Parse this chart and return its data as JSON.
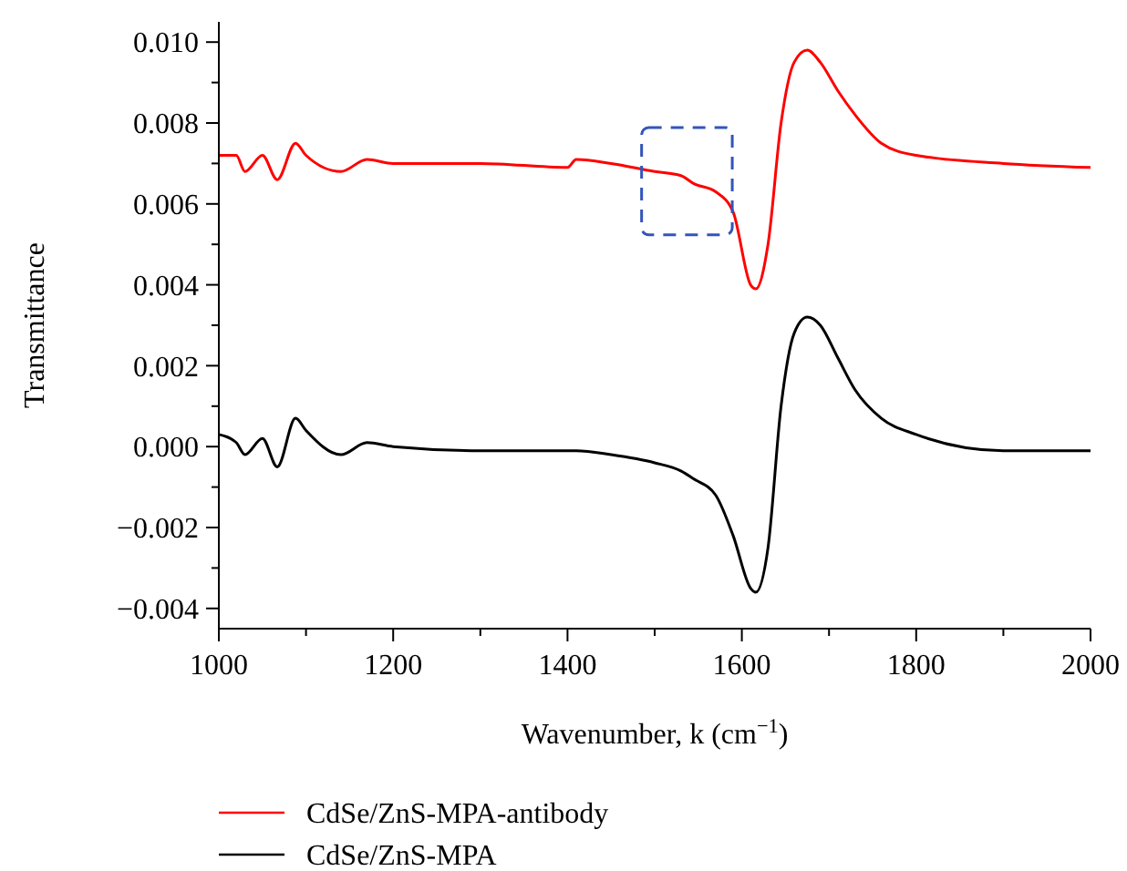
{
  "chart_data": {
    "type": "line",
    "xlabel": "Wavenumber, k (cm$^{−1}$)",
    "ylabel": "Transmittance",
    "xlim": [
      1000,
      2000
    ],
    "ylim": [
      -0.0045,
      0.0105
    ],
    "xticks": [
      1000,
      {
        "value": 1100,
        "label": null
      },
      1200,
      {
        "value": 1300,
        "label": null
      },
      1400,
      {
        "value": 1500,
        "label": null
      },
      1600,
      {
        "value": 1700,
        "label": null
      },
      1800,
      {
        "value": 1900,
        "label": null
      },
      2000
    ],
    "yticks": [
      {
        "value": -0.004,
        "label": "−0.004"
      },
      {
        "value": -0.003,
        "label": null
      },
      {
        "value": -0.002,
        "label": "−0.002"
      },
      {
        "value": -0.001,
        "label": null
      },
      {
        "value": 0,
        "label": "0.000"
      },
      {
        "value": 0.001,
        "label": null
      },
      {
        "value": 0.002,
        "label": "0.002"
      },
      {
        "value": 0.003,
        "label": null
      },
      {
        "value": 0.004,
        "label": "0.004"
      },
      {
        "value": 0.005,
        "label": null
      },
      {
        "value": 0.006,
        "label": "0.006"
      },
      {
        "value": 0.007,
        "label": null
      },
      {
        "value": 0.008,
        "label": "0.008"
      },
      {
        "value": 0.009,
        "label": null
      },
      {
        "value": 0.01,
        "label": "0.010"
      }
    ],
    "x": [
      1000,
      1020,
      1030,
      1050,
      1067,
      1088,
      1100,
      1140,
      1170,
      1200,
      1300,
      1400,
      1410,
      1450,
      1500,
      1530,
      1545,
      1570,
      1590,
      1610,
      1616,
      1630,
      1645,
      1660,
      1675,
      1690,
      1710,
      1730,
      1760,
      1800,
      1900,
      2000
    ],
    "series": [
      {
        "name": "CdSe/ZnS-MPA-antibody",
        "color": "#ff0000",
        "values": [
          0.0072,
          0.0072,
          0.0068,
          0.0072,
          0.0066,
          0.0075,
          0.0072,
          0.0068,
          0.0071,
          0.007,
          0.007,
          0.0069,
          0.0071,
          0.007,
          0.0068,
          0.0067,
          0.0065,
          0.0063,
          0.0058,
          0.004,
          0.0039,
          0.005,
          0.008,
          0.0095,
          0.0098,
          0.0095,
          0.0088,
          0.0082,
          0.0075,
          0.0072,
          0.007,
          0.0069
        ]
      },
      {
        "name": "CdSe/ZnS-MPA",
        "color": "#000000",
        "values": [
          0.0003,
          0.0001,
          -0.0002,
          0.0002,
          -0.0005,
          0.0007,
          0.0004,
          -0.0002,
          0.0001,
          0,
          -0.0001,
          -0.0001,
          -0.0001,
          -0.0002,
          -0.0004,
          -0.0006,
          -0.0008,
          -0.0012,
          -0.0022,
          -0.0035,
          -0.0036,
          -0.0025,
          0.001,
          0.0028,
          0.0032,
          0.003,
          0.0022,
          0.0014,
          0.0007,
          0.0003,
          -0.0001,
          -0.0001
        ]
      }
    ],
    "legend": "bottom",
    "grid": false
  }
}
